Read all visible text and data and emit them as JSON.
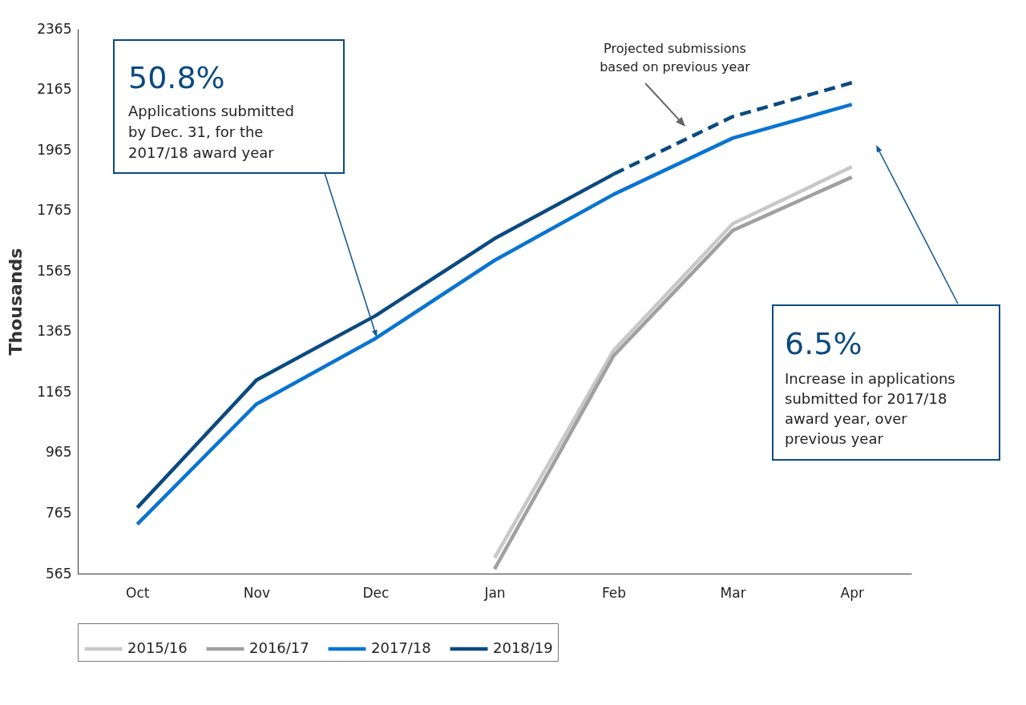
{
  "chart_data": {
    "type": "line",
    "ylabel": "Thousands",
    "categories": [
      "Oct",
      "Nov",
      "Dec",
      "Jan",
      "Feb",
      "Mar",
      "Apr"
    ],
    "ylim": [
      565,
      2365
    ],
    "yticks": [
      565,
      765,
      965,
      1165,
      1365,
      1565,
      1765,
      1965,
      2165,
      2365
    ],
    "series": [
      {
        "name": "2015/16",
        "color": "#c8c8c8",
        "values": [
          null,
          null,
          null,
          617,
          1303,
          1721,
          1909
        ]
      },
      {
        "name": "2016/17",
        "color": "#a0a0a0",
        "values": [
          null,
          null,
          null,
          580,
          1285,
          1699,
          1875
        ]
      },
      {
        "name": "2017/18",
        "color": "#0a74d0",
        "values": [
          728,
          1125,
          1342,
          1600,
          1818,
          2004,
          2115
        ]
      },
      {
        "name": "2018/19",
        "color": "#0b4a80",
        "values": [
          783,
          1204,
          1417,
          1672,
          1885,
          null,
          null
        ]
      },
      {
        "color": "#0b4a80",
        "line_style": "dashed",
        "values": [
          null,
          null,
          null,
          null,
          1885,
          2075,
          2187
        ]
      }
    ],
    "annotations": [
      "50.8%",
      "Applications submitted by Dec. 31, for the 2017/18 award year",
      "6.5%",
      "Increase in applications submitted for 2017/18 award year, over previous year",
      "Projected submissions based on previous year"
    ],
    "legend": "bottom",
    "grid": false,
    "line_style": "solid",
    "marker": "none"
  }
}
